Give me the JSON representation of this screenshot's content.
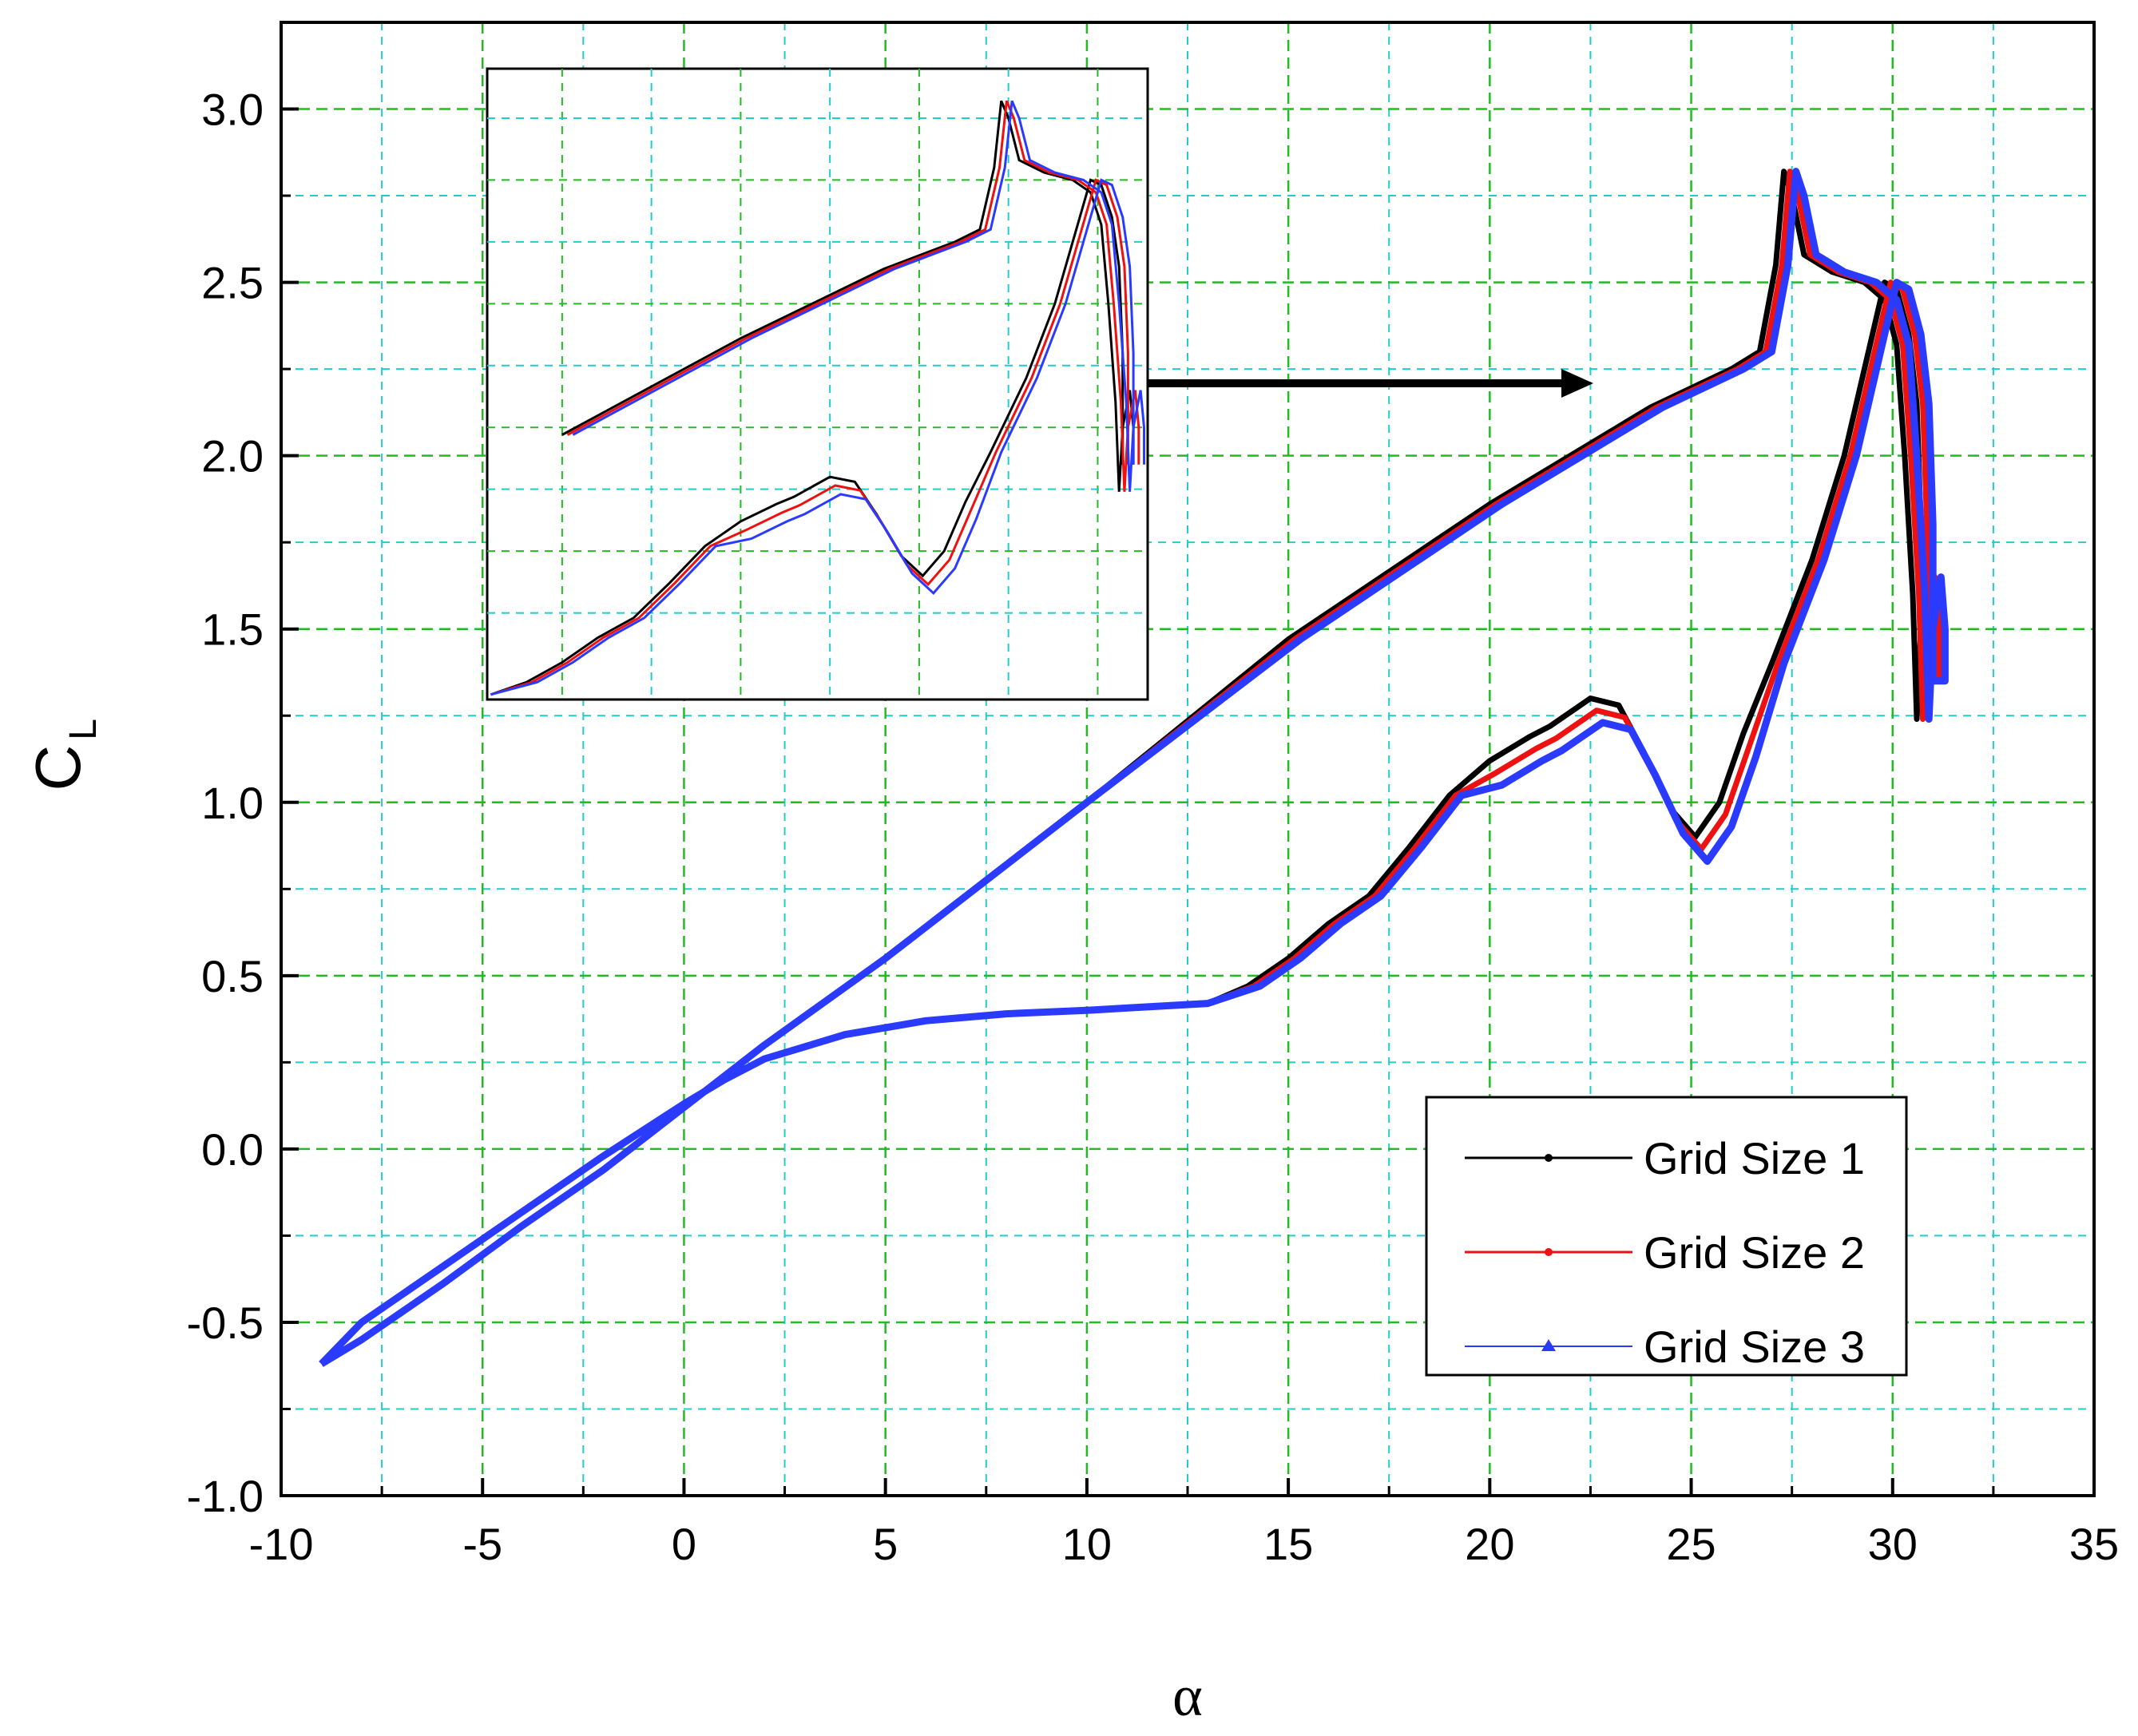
{
  "chart_data": {
    "type": "line",
    "xlabel": "α",
    "ylabel": {
      "main": "C",
      "sub": "L"
    },
    "xlim": [
      -10,
      35
    ],
    "ylim": [
      -1.0,
      3.25
    ],
    "xticks": [
      "-10",
      "-5",
      "0",
      "5",
      "10",
      "15",
      "20",
      "25",
      "30",
      "35"
    ],
    "yticks": [
      "-1.0",
      "-0.5",
      "0.0",
      "0.5",
      "1.0",
      "1.5",
      "2.0",
      "2.5",
      "3.0"
    ],
    "grid": {
      "major": true,
      "minor": true,
      "major_color": "#22bb22",
      "minor_color": "#22cccc"
    },
    "legend": {
      "placement": "lower-right",
      "entries": [
        "Grid Size 1",
        "Grid Size 2",
        "Grid Size 3"
      ]
    },
    "series_colors": [
      "#000000",
      "#ee1111",
      "#2a3bff"
    ],
    "upstroke": [
      [
        -9,
        -0.62
      ],
      [
        -8,
        -0.5
      ],
      [
        -6,
        -0.34
      ],
      [
        -4,
        -0.18
      ],
      [
        -2,
        -0.02
      ],
      [
        0,
        0.13
      ],
      [
        1,
        0.2
      ],
      [
        2,
        0.26
      ],
      [
        4,
        0.33
      ],
      [
        6,
        0.37
      ],
      [
        8,
        0.39
      ],
      [
        10,
        0.4
      ],
      [
        13,
        0.42
      ],
      [
        14,
        0.47
      ],
      [
        15,
        0.55
      ],
      [
        16,
        0.65
      ],
      [
        17,
        0.73
      ],
      [
        18,
        0.87
      ],
      [
        19,
        1.02
      ],
      [
        20,
        1.12
      ],
      [
        21,
        1.19
      ],
      [
        21.5,
        1.22
      ],
      [
        22.5,
        1.3
      ],
      [
        23.2,
        1.28
      ],
      [
        23.8,
        1.15
      ],
      [
        24.5,
        0.98
      ],
      [
        25.1,
        0.9
      ],
      [
        25.7,
        1.0
      ],
      [
        26.3,
        1.2
      ],
      [
        27,
        1.4
      ],
      [
        28,
        1.7
      ],
      [
        28.8,
        2.0
      ],
      [
        29.4,
        2.3
      ],
      [
        29.8,
        2.5
      ],
      [
        30.1,
        2.48
      ],
      [
        30.4,
        2.35
      ],
      [
        30.6,
        2.15
      ],
      [
        30.7,
        1.8
      ],
      [
        30.7,
        1.35
      ]
    ],
    "downstroke": [
      [
        31,
        1.35
      ],
      [
        31,
        1.5
      ],
      [
        30.9,
        1.65
      ],
      [
        30.7,
        1.5
      ],
      [
        30.6,
        1.24
      ],
      [
        30.5,
        1.6
      ],
      [
        30.3,
        2.0
      ],
      [
        30.1,
        2.32
      ],
      [
        29.8,
        2.45
      ],
      [
        29.3,
        2.5
      ],
      [
        28.5,
        2.53
      ],
      [
        27.8,
        2.58
      ],
      [
        27.5,
        2.75
      ],
      [
        27.3,
        2.82
      ],
      [
        27.1,
        2.55
      ],
      [
        26.7,
        2.3
      ],
      [
        26,
        2.25
      ],
      [
        24,
        2.14
      ],
      [
        22,
        2.0
      ],
      [
        20,
        1.86
      ],
      [
        15,
        1.47
      ],
      [
        10,
        1.0
      ],
      [
        5,
        0.55
      ],
      [
        2,
        0.3
      ],
      [
        0,
        0.12
      ],
      [
        -2,
        -0.06
      ],
      [
        -4,
        -0.22
      ],
      [
        -6,
        -0.39
      ],
      [
        -8,
        -0.55
      ],
      [
        -9,
        -0.62
      ]
    ]
  }
}
